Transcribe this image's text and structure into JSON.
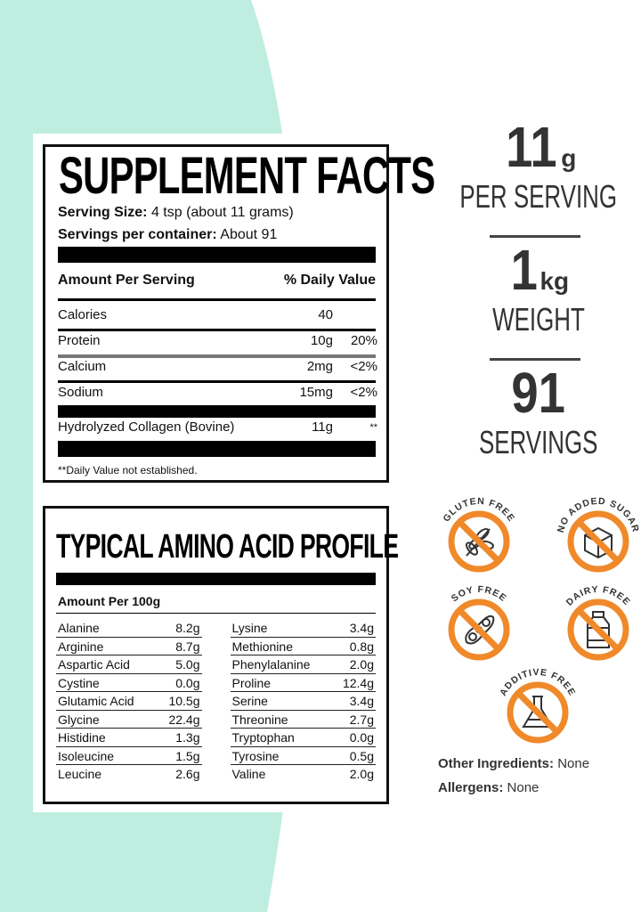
{
  "supplement_facts": {
    "title": "SUPPLEMENT FACTS",
    "serving_size_label": "Serving Size:",
    "serving_size_value": "4 tsp (about 11 grams)",
    "servings_label": "Servings per container:",
    "servings_value": "About 91",
    "amount_header": "Amount Per Serving",
    "dv_header": "% Daily Value",
    "rows": [
      {
        "name": "Calories",
        "amount": "40",
        "dv": ""
      },
      {
        "name": "Protein",
        "amount": "10g",
        "dv": "20%"
      },
      {
        "name": "Calcium",
        "amount": "2mg",
        "dv": "<2%"
      },
      {
        "name": "Sodium",
        "amount": "15mg",
        "dv": "<2%"
      },
      {
        "name": "Hydrolyzed Collagen (Bovine)",
        "amount": "11g",
        "dv": "**"
      }
    ],
    "footnote": "**Daily Value not established."
  },
  "amino": {
    "title": "TYPICAL AMINO ACID PROFILE",
    "header": "Amount Per 100g",
    "left": [
      [
        "Alanine",
        "8.2g"
      ],
      [
        "Arginine",
        "8.7g"
      ],
      [
        "Aspartic Acid",
        "5.0g"
      ],
      [
        "Cystine",
        "0.0g"
      ],
      [
        "Glutamic Acid",
        "10.5g"
      ],
      [
        "Glycine",
        "22.4g"
      ],
      [
        "Histidine",
        "1.3g"
      ],
      [
        "Isoleucine",
        "1.5g"
      ],
      [
        "Leucine",
        "2.6g"
      ]
    ],
    "right": [
      [
        "Lysine",
        "3.4g"
      ],
      [
        "Methionine",
        "0.8g"
      ],
      [
        "Phenylalanine",
        "2.0g"
      ],
      [
        "Proline",
        "12.4g"
      ],
      [
        "Serine",
        "3.4g"
      ],
      [
        "Threonine",
        "2.7g"
      ],
      [
        "Tryptophan",
        "0.0g"
      ],
      [
        "Tyrosine",
        "0.5g"
      ],
      [
        "Valine",
        "2.0g"
      ]
    ]
  },
  "stats": [
    {
      "value": "11",
      "unit": "g",
      "label": "PER SERVING"
    },
    {
      "value": "1",
      "unit": "kg",
      "label": "WEIGHT"
    },
    {
      "value": "91",
      "unit": "",
      "label": "SERVINGS"
    }
  ],
  "badges": [
    {
      "label": "GLUTEN FREE",
      "icon": "wheat-icon"
    },
    {
      "label": "NO ADDED SUGAR",
      "icon": "sugar-cube-icon"
    },
    {
      "label": "SOY FREE",
      "icon": "soybean-icon"
    },
    {
      "label": "DAIRY FREE",
      "icon": "milk-bottle-icon"
    },
    {
      "label": "ADDITIVE FREE",
      "icon": "flask-icon"
    }
  ],
  "other_ingredients_label": "Other Ingredients:",
  "other_ingredients_value": "None",
  "allergens_label": "Allergens:",
  "allergens_value": "None",
  "colors": {
    "mint": "#bfeee0",
    "orange": "#f0892a",
    "text": "#333333"
  }
}
